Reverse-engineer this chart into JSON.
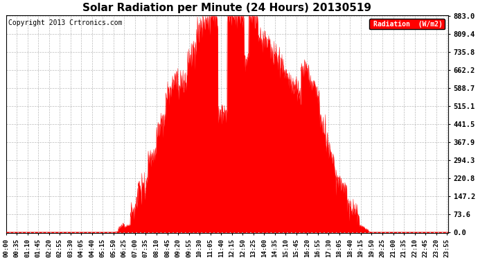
{
  "title": "Solar Radiation per Minute (24 Hours) 20130519",
  "copyright_text": "Copyright 2013 Crtronics.com",
  "legend_text": "Radiation  (W/m2)",
  "yticks": [
    0.0,
    73.6,
    147.2,
    220.8,
    294.3,
    367.9,
    441.5,
    515.1,
    588.7,
    662.2,
    735.8,
    809.4,
    883.0
  ],
  "ymax": 883.0,
  "fill_color": "#FF0000",
  "line_color": "#FF0000",
  "background_color": "#FFFFFF",
  "grid_color": "#AAAAAA",
  "dashed_zero_color": "#FF0000",
  "legend_bg": "#FF0000",
  "title_fontsize": 11,
  "copyright_fontsize": 7,
  "tick_fontsize": 6.5,
  "ytick_fontsize": 7.5,
  "legend_fontsize": 7
}
